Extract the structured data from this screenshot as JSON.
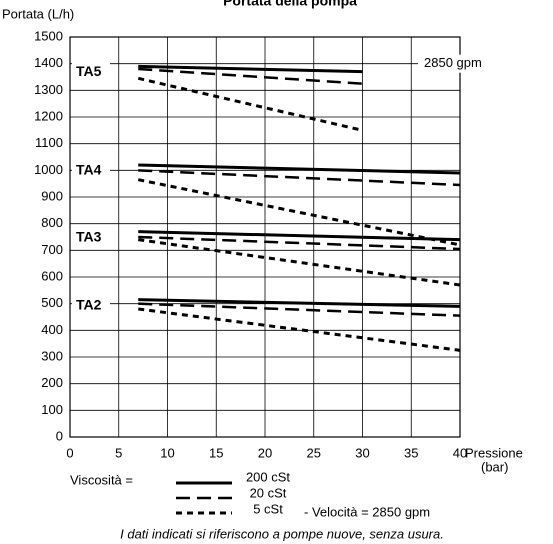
{
  "chart_data": {
    "type": "line",
    "title": "Portata della pompa",
    "y_label": "Portata (L/h)",
    "x_label": "Pressione",
    "x_unit": "(bar)",
    "xlim": [
      0,
      40
    ],
    "xticks": [
      0,
      5,
      10,
      15,
      20,
      25,
      30,
      35,
      40
    ],
    "ylim": [
      0,
      1500
    ],
    "yticks": [
      0,
      100,
      200,
      300,
      400,
      500,
      600,
      700,
      800,
      900,
      1000,
      1100,
      1200,
      1300,
      1400,
      1500
    ],
    "grid": true,
    "color": "#000000",
    "legend_title": "Viscosità =",
    "legend": [
      {
        "label": "200 cSt",
        "dash": "solid"
      },
      {
        "label": "20 cSt",
        "dash": "long"
      },
      {
        "label": "5 cSt",
        "dash": "short"
      }
    ],
    "legend_note": "- Velocità = 2850 gpm",
    "annotation": "2850 gpm",
    "footnote": "I dati indicati si riferiscono a pompe nuove, senza usura.",
    "groups": [
      {
        "label": "TA5",
        "series": [
          {
            "x": [
              7,
              30
            ],
            "values": [
              1390,
              1370
            ]
          },
          {
            "x": [
              7,
              30
            ],
            "values": [
              1380,
              1325
            ]
          },
          {
            "x": [
              7,
              30
            ],
            "values": [
              1345,
              1150
            ]
          }
        ]
      },
      {
        "label": "TA4",
        "series": [
          {
            "x": [
              7,
              40
            ],
            "values": [
              1020,
              990
            ]
          },
          {
            "x": [
              7,
              40
            ],
            "values": [
              1000,
              945
            ]
          },
          {
            "x": [
              7,
              40
            ],
            "values": [
              965,
              720
            ]
          }
        ]
      },
      {
        "label": "TA3",
        "series": [
          {
            "x": [
              7,
              40
            ],
            "values": [
              770,
              740
            ]
          },
          {
            "x": [
              7,
              40
            ],
            "values": [
              750,
              705
            ]
          },
          {
            "x": [
              7,
              40
            ],
            "values": [
              740,
              570
            ]
          }
        ]
      },
      {
        "label": "TA2",
        "series": [
          {
            "x": [
              7,
              40
            ],
            "values": [
              515,
              490
            ]
          },
          {
            "x": [
              7,
              40
            ],
            "values": [
              500,
              455
            ]
          },
          {
            "x": [
              7,
              40
            ],
            "values": [
              480,
              325
            ]
          }
        ]
      }
    ]
  }
}
